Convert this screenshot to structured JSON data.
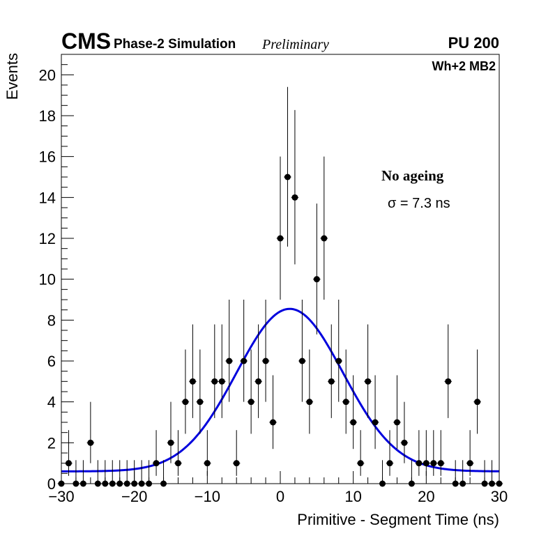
{
  "header": {
    "experiment": "CMS",
    "subtitle": "Phase-2 Simulation",
    "status": "Preliminary",
    "pileup": "PU 200",
    "region": "Wh+2 MB2"
  },
  "annotations": {
    "condition": "No ageing",
    "sigma": "σ = 7.3 ns"
  },
  "colors": {
    "fit": "#0000dd",
    "points": "#000000"
  },
  "chart_data": {
    "type": "scatter",
    "title": "",
    "xlabel": "Primitive - Segment Time (ns)",
    "ylabel": "Events",
    "xlim": [
      -30,
      30
    ],
    "ylim": [
      0,
      21
    ],
    "x_ticks": [
      -30,
      -20,
      -10,
      0,
      10,
      20,
      30
    ],
    "x_tick_labels": [
      "−30",
      "−20",
      "−10",
      "0",
      "10",
      "20",
      "30"
    ],
    "y_ticks": [
      0,
      2,
      4,
      6,
      8,
      10,
      12,
      14,
      16,
      18,
      20
    ],
    "y_tick_labels": [
      "0",
      "2",
      "4",
      "6",
      "8",
      "10",
      "12",
      "14",
      "16",
      "18",
      "20"
    ],
    "bin_width": 1,
    "x": [
      -30,
      -29,
      -28,
      -27,
      -26,
      -25,
      -24,
      -23,
      -22,
      -21,
      -20,
      -19,
      -18,
      -17,
      -16,
      -15,
      -14,
      -13,
      -12,
      -11,
      -10,
      -9,
      -8,
      -7,
      -6,
      -5,
      -4,
      -3,
      -2,
      -1,
      0,
      1,
      2,
      3,
      4,
      5,
      6,
      7,
      8,
      9,
      10,
      11,
      12,
      13,
      14,
      15,
      16,
      17,
      18,
      19,
      20,
      21,
      22,
      23,
      24,
      25,
      26,
      27,
      28,
      29,
      30
    ],
    "series": [
      {
        "name": "Data",
        "style": "points-with-poisson-errors",
        "values": [
          0,
          1,
          0,
          0,
          2,
          0,
          0,
          0,
          0,
          0,
          0,
          0,
          0,
          1,
          0,
          2,
          1,
          4,
          5,
          4,
          1,
          5,
          5,
          6,
          1,
          6,
          4,
          5,
          6,
          3,
          12,
          15,
          14,
          6,
          4,
          10,
          12,
          5,
          6,
          4,
          3,
          1,
          5,
          3,
          0,
          1,
          3,
          2,
          0,
          1,
          1,
          1,
          1,
          5,
          0,
          0,
          1,
          4,
          0,
          0,
          0
        ]
      },
      {
        "name": "Gaussian fit",
        "style": "line",
        "function": "gaussian",
        "constant": 7.95,
        "mean": 1.3,
        "sigma": 7.3,
        "baseline": 0.6
      }
    ],
    "grid": false,
    "legend": "none"
  }
}
